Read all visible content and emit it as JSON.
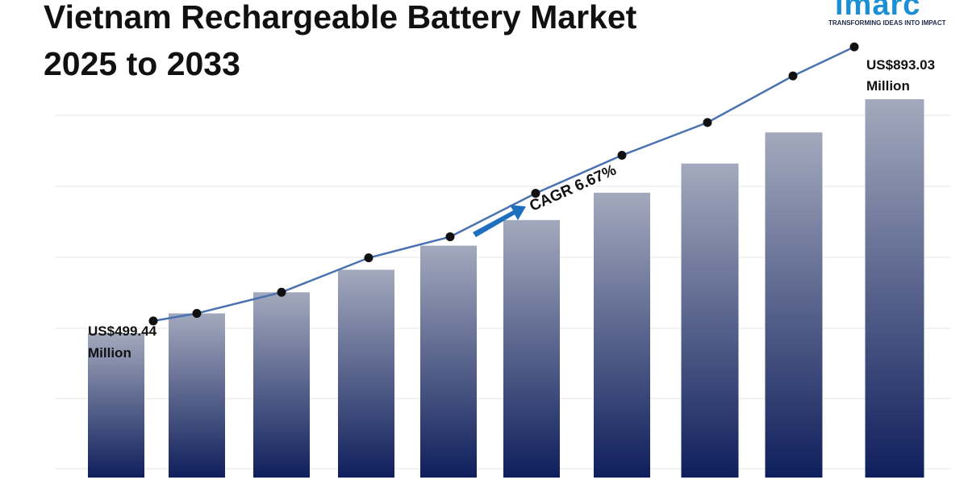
{
  "header": {
    "title_line1": "Vietnam Rechargeable Battery Market",
    "title_line2": "2025 to 2033"
  },
  "brand": {
    "logo_text": "imarc",
    "tagline": "TRANSFORMING IDEAS INTO IMPACT",
    "logo_color": "#1a8fd6"
  },
  "chart_data": {
    "type": "bar",
    "title": "Vietnam Rechargeable Battery Market 2025 to 2033",
    "categories": [
      "",
      "",
      "",
      "",
      "",
      "",
      "",
      "",
      "",
      ""
    ],
    "values": [
      499.44,
      532.75,
      568.29,
      606.19,
      646.62,
      689.75,
      735.76,
      784.83,
      837.18,
      893.03
    ],
    "trend_line": [
      520,
      532.75,
      568.29,
      626.19,
      661.62,
      734.75,
      798.76,
      853.83,
      932.18,
      981.03
    ],
    "annotations": {
      "start_label_line1": "US$499.44",
      "start_label_line2": "Million",
      "end_label_line1": "US$893.03",
      "end_label_line2": "Million",
      "cagr": "CAGR 6.67%"
    },
    "bar_color_top": "#a3a9bd",
    "bar_color_bottom": "#0f1f5c",
    "line_color": "#4a72b0",
    "arrow_color": "#1f6fbf",
    "grid": true
  }
}
